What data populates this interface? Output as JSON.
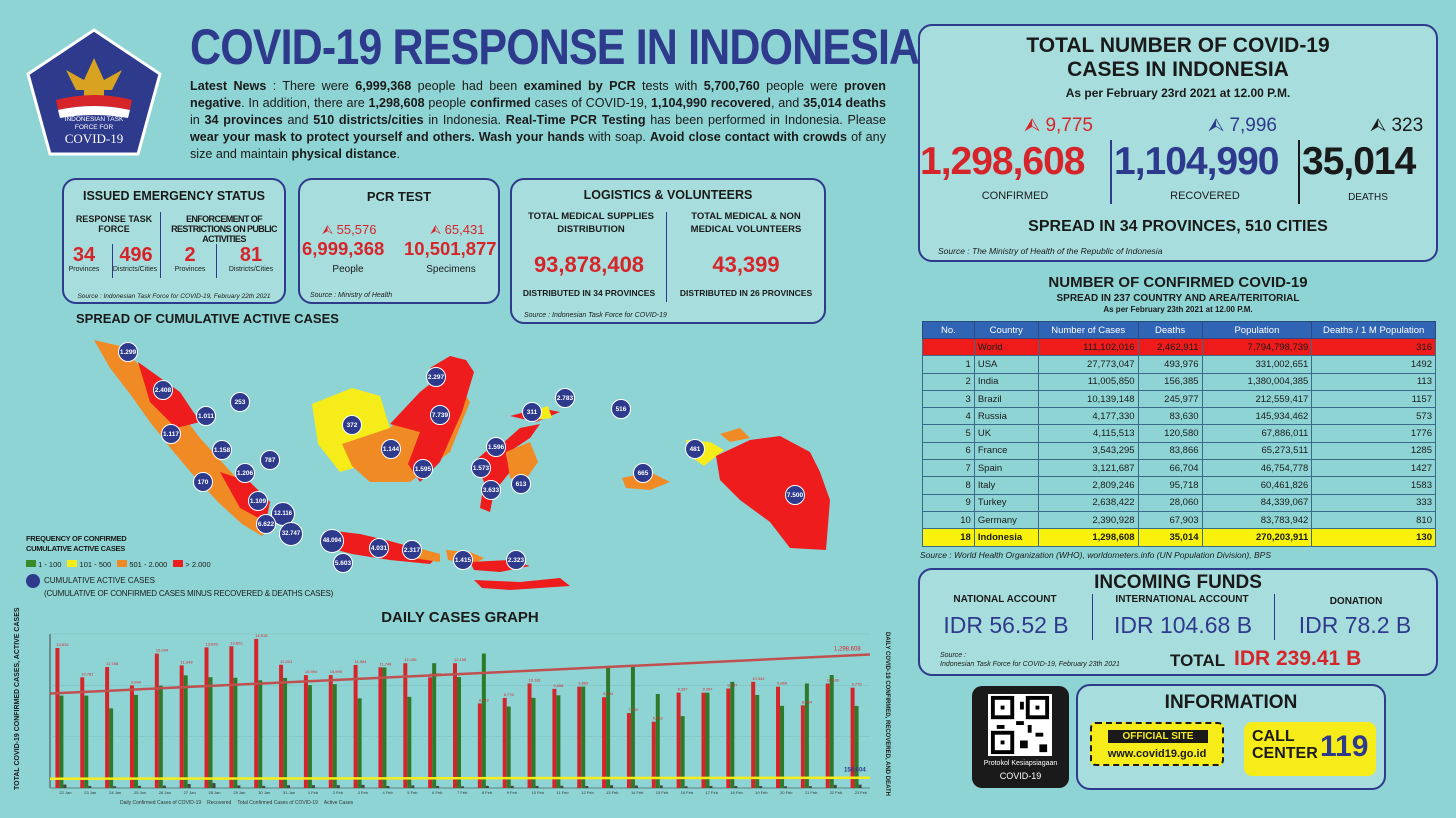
{
  "header": {
    "title": "COVID-19 RESPONSE IN INDONESIA",
    "logo_text1": "INDONESIAN TASK",
    "logo_text2": "FORCE FOR",
    "logo_text3": "COVID-19"
  },
  "news": {
    "p1": "Latest News",
    "t1": " : There were ",
    "v1": "6,999,368",
    "t2": " people had been ",
    "v2": "examined by PCR",
    "t3": " tests with ",
    "v3": "5,700,760",
    "t4": " people were ",
    "v4": "proven negative",
    "t5": ". In addition, there are ",
    "v5": "1,298,608",
    "t6": " people ",
    "v6": "confirmed",
    "t7": " cases of COVID-19, ",
    "v7": "1,104,990 recovered",
    "t8": ", and ",
    "v8": "35,014 deaths",
    "t9": " in ",
    "v9": "34 provinces",
    "t10": " and ",
    "v10": "510 districts/cities",
    "t11": " in Indonesia. ",
    "v11": "Real-Time PCR Testing",
    "t12": " has been performed in Indonesia. Please ",
    "v12": "wear your mask to protect yourself and others. Wash your hands",
    "t13": " with soap. ",
    "v13": "Avoid close contact with crowds",
    "t14": " of any size and maintain ",
    "v14": "physical distance",
    "t15": "."
  },
  "emergency": {
    "title": "ISSUED EMERGENCY STATUS",
    "col1": "RESPONSE TASK FORCE",
    "col2": "ENFORCEMENT OF RESTRICTIONS ON PUBLIC ACTIVITIES",
    "n1": "34",
    "l1": "Provinces",
    "n2": "496",
    "l2": "Districts/Cities",
    "n3": "2",
    "l3": "Provinces",
    "n4": "81",
    "l4": "Districts/Cities",
    "source": "Source : Indonesian Task Force for COVID-19, February 22th 2021"
  },
  "pcr": {
    "title": "PCR TEST",
    "inc1": "55,576",
    "inc2": "65,431",
    "v1": "6,999,368",
    "l1": "People",
    "v2": "10,501,877",
    "l2": "Specimens",
    "source": "Source : Ministry of Health"
  },
  "logistics": {
    "title": "LOGISTICS & VOLUNTEERS",
    "h1": "TOTAL MEDICAL SUPPLIES DISTRIBUTION",
    "v1": "93,878,408",
    "f1": "DISTRIBUTED IN 34 PROVINCES",
    "h2": "TOTAL MEDICAL & NON MEDICAL VOLUNTEERS",
    "v2": "43,399",
    "f2": "DISTRIBUTED IN 26 PROVINCES",
    "source": "Source : Indonesian Task Force for COVID-19"
  },
  "map": {
    "title": "SPREAD OF CUMULATIVE ACTIVE CASES",
    "legend_title": "FREQUENCY OF CONFIRMED CUMULATIVE ACTIVE CASES",
    "legend": [
      {
        "label": "1 - 100",
        "color": "#3a8a2a"
      },
      {
        "label": "101 - 500",
        "color": "#f5ec1a"
      },
      {
        "label": "501 - 2.000",
        "color": "#f08a24"
      },
      {
        "label": "> 2.000",
        "color": "#ee1c1c"
      }
    ],
    "circle_legend": "CUMULATIVE ACTIVE CASES",
    "circle_note": "(CUMULATIVE OF CONFIRMED CASES MINUS RECOVERED & DEATHS CASES)",
    "bubbles": [
      "1.299",
      "2.408",
      "1.011",
      "253",
      "1.117",
      "1.158",
      "787",
      "170",
      "1.206",
      "1.109",
      "12.116",
      "6.622",
      "32.747",
      "48.094",
      "5.603",
      "4.031",
      "2.317",
      "1.415",
      "2.323",
      "372",
      "1.144",
      "1.595",
      "2.297",
      "7.739",
      "311",
      "2.783",
      "516",
      "1.596",
      "1.573",
      "3.633",
      "613",
      "665",
      "481",
      "7.500"
    ]
  },
  "totals": {
    "title1": "TOTAL NUMBER OF COVID-19",
    "title2": "CASES IN INDONESIA",
    "date": "As per February 23rd 2021 at 12.00 P.M.",
    "inc_c": "9,775",
    "inc_r": "7,996",
    "inc_d": "323",
    "confirmed": "1,298,608",
    "recovered": "1,104,990",
    "deaths": "35,014",
    "lc": "CONFIRMED",
    "lr": "RECOVERED",
    "ld": "DEATHS",
    "spread": "SPREAD IN 34 PROVINCES, 510 CITIES",
    "source": "Source : The Ministry of Health of the Republic of Indonesia"
  },
  "world": {
    "title": "NUMBER OF CONFIRMED COVID-19",
    "subtitle": "SPREAD IN 237 COUNTRY AND AREA/TERITORIAL",
    "date": "As per February 23th 2021 at 12.00 P.M.",
    "headers": [
      "No.",
      "Country",
      "Number of Cases",
      "Deaths",
      "Population",
      "Deaths / 1 M Population"
    ],
    "rows": [
      [
        "",
        "World",
        "111,102,016",
        "2,462,911",
        "7,794,798,739",
        "316"
      ],
      [
        "1",
        "USA",
        "27,773,047",
        "493,976",
        "331,002,651",
        "1492"
      ],
      [
        "2",
        "India",
        "11,005,850",
        "156,385",
        "1,380,004,385",
        "113"
      ],
      [
        "3",
        "Brazil",
        "10,139,148",
        "245,977",
        "212,559,417",
        "1157"
      ],
      [
        "4",
        "Russia",
        "4,177,330",
        "83,630",
        "145,934,462",
        "573"
      ],
      [
        "5",
        "UK",
        "4,115,513",
        "120,580",
        "67,886,011",
        "1776"
      ],
      [
        "6",
        "France",
        "3,543,295",
        "83,866",
        "65,273,511",
        "1285"
      ],
      [
        "7",
        "Spain",
        "3,121,687",
        "66,704",
        "46,754,778",
        "1427"
      ],
      [
        "8",
        "Italy",
        "2,809,246",
        "95,718",
        "60,461,826",
        "1583"
      ],
      [
        "9",
        "Turkey",
        "2,638,422",
        "28,060",
        "84,339,067",
        "333"
      ],
      [
        "10",
        "Germany",
        "2,390,928",
        "67,903",
        "83,783,942",
        "810"
      ],
      [
        "18",
        "Indonesia",
        "1,298,608",
        "35,014",
        "270,203,911",
        "130"
      ]
    ],
    "source": "Source : World Health Organization (WHO), worldometers.info (UN Population Division), BPS"
  },
  "funds": {
    "title": "INCOMING FUNDS",
    "h1": "NATIONAL ACCOUNT",
    "v1": "IDR 56.52 B",
    "h2": "INTERNATIONAL ACCOUNT",
    "v2": "IDR 104.68 B",
    "h3": "DONATION",
    "v3": "IDR 78.2 B",
    "source1": "Source :",
    "source2": "Indonesian Task Force for COVID-19, February 23th 2021",
    "total_label": "TOTAL",
    "total": "IDR 239.41 B"
  },
  "info": {
    "qr1": "Protokol Kesiapsiagaan",
    "qr2": "COVID-19",
    "title": "INFORMATION",
    "site_label": "OFFICIAL SITE",
    "site": "www.covid19.go.id",
    "call1": "CALL",
    "call2": "CENTER",
    "call_num": "119"
  },
  "graph": {
    "title": "DAILY CASES GRAPH",
    "ylabel_left": "TOTAL COVID-19 CONFIRMED CASES, ACTIVE CASES",
    "ylabel_right": "DAILY COVID-19 CONFIRMED, RECOVERED, AND DEATH",
    "end_confirmed": "1,298,608",
    "end_active": "158,604",
    "dates": [
      "22 Jan",
      "23 Jan",
      "24 Jan",
      "25 Jan",
      "26 Jan",
      "27 Jan",
      "28 Jan",
      "29 Jan",
      "30 Jan",
      "31 Jan",
      "1 Feb",
      "2 Feb",
      "3 Feb",
      "4 Feb",
      "5 Feb",
      "6 Feb",
      "7 Feb",
      "8 Feb",
      "9 Feb",
      "10 Feb",
      "11 Feb",
      "12 Feb",
      "13 Feb",
      "14 Feb",
      "15 Feb",
      "16 Feb",
      "17 Feb",
      "18 Feb",
      "19 Feb",
      "20 Feb",
      "21 Feb",
      "22 Feb",
      "23 Feb"
    ],
    "confirmed": [
      13632,
      10781,
      11788,
      9994,
      13094,
      11948,
      13695,
      13802,
      14518,
      12001,
      10994,
      10995,
      11984,
      11749,
      12156,
      10786,
      12156,
      8242,
      8776,
      10181,
      9658,
      9869,
      8844,
      7300,
      6462,
      9287,
      9287,
      9687,
      10343,
      9869,
      8054,
      10180,
      9775
    ],
    "recovered": [
      9000,
      9000,
      7751,
      9070,
      9968,
      10974,
      10792,
      10738,
      10490,
      10719,
      10015,
      10110,
      8735,
      11747,
      8878,
      12156,
      10806,
      13095,
      7934,
      8776,
      9030,
      9879,
      11900,
      11918,
      9157,
      7000,
      9287,
      10343,
      9059,
      8000,
      10180,
      11000,
      7996
    ],
    "deaths": [
      336,
      201,
      171,
      207,
      236,
      387,
      476,
      250,
      210,
      270,
      276,
      279,
      304,
      195,
      251,
      201,
      162,
      207,
      212,
      200,
      214,
      195,
      270,
      236,
      247,
      166,
      200,
      191,
      183,
      164,
      173,
      300,
      323
    ],
    "legend1": "Daily Confirmed Cases of COVID-19",
    "legend2": "Recovered",
    "legend3": "Total Confirmed Cases of COVID-19",
    "legend4": "Active Cases"
  }
}
